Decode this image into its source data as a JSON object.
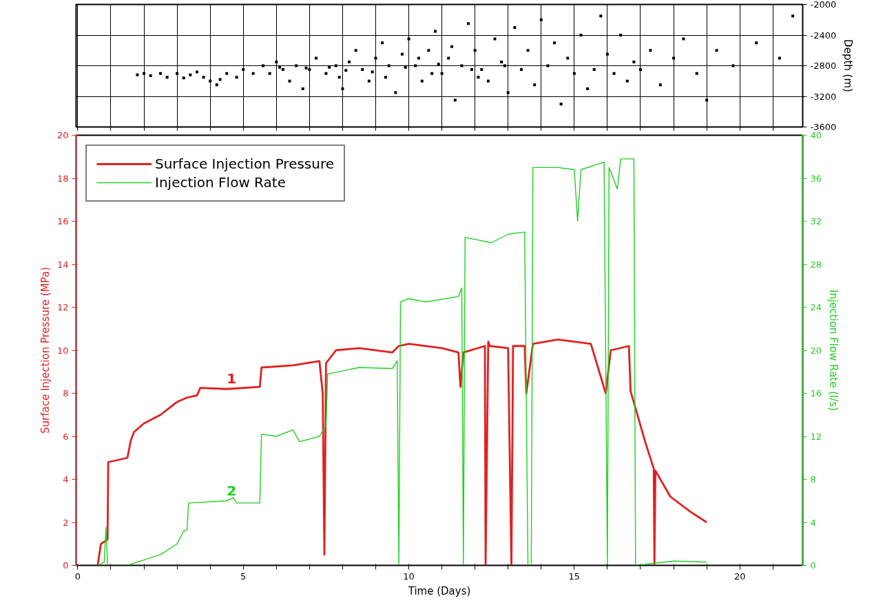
{
  "chart_data": [
    {
      "type": "scatter",
      "color": "#000000",
      "marker": "square",
      "grid": true,
      "tick_labels": "y",
      "ylabel": "Depth (m)",
      "xlim": [
        -0.05,
        21.9
      ],
      "ylim": [
        -3600,
        -2000
      ],
      "yticks": [
        -2000,
        -2400,
        -2800,
        -3200,
        -3600
      ],
      "xticks": [
        {
          "value": 0,
          "label": null
        },
        {
          "value": 1,
          "label": null
        },
        {
          "value": 2,
          "label": null
        },
        {
          "value": 3,
          "label": null
        },
        {
          "value": 4,
          "label": null
        },
        {
          "value": 5,
          "label": null
        },
        {
          "value": 6,
          "label": null
        },
        {
          "value": 7,
          "label": null
        },
        {
          "value": 8,
          "label": null
        },
        {
          "value": 9,
          "label": null
        },
        {
          "value": 10,
          "label": null
        },
        {
          "value": 11,
          "label": null
        },
        {
          "value": 12,
          "label": null
        },
        {
          "value": 13,
          "label": null
        },
        {
          "value": 14,
          "label": null
        },
        {
          "value": 15,
          "label": null
        },
        {
          "value": 16,
          "label": null
        },
        {
          "value": 17,
          "label": null
        },
        {
          "value": 18,
          "label": null
        },
        {
          "value": 19,
          "label": null
        },
        {
          "value": 20,
          "label": null
        },
        {
          "value": 21,
          "label": null
        }
      ],
      "x": [
        1.8,
        2.0,
        2.2,
        2.5,
        2.7,
        3.0,
        3.2,
        3.4,
        3.6,
        3.8,
        4.0,
        4.2,
        4.3,
        4.5,
        4.8,
        5.0,
        5.3,
        5.6,
        5.8,
        6.0,
        6.2,
        6.4,
        6.6,
        6.8,
        7.0,
        7.2,
        7.5,
        7.8,
        8.0,
        8.2,
        8.4,
        8.6,
        8.8,
        9.0,
        9.2,
        9.4,
        9.6,
        9.8,
        10.0,
        10.2,
        10.4,
        10.6,
        10.8,
        11.0,
        11.2,
        11.4,
        11.6,
        11.8,
        12.0,
        12.2,
        12.4,
        12.6,
        12.8,
        13.0,
        13.2,
        13.4,
        13.6,
        13.8,
        14.0,
        14.2,
        14.4,
        14.6,
        14.8,
        15.0,
        15.2,
        15.4,
        15.6,
        15.8,
        16.0,
        16.2,
        16.4,
        16.6,
        16.8,
        17.0,
        17.3,
        17.6,
        18.0,
        18.3,
        18.7,
        19.0,
        19.3,
        19.8,
        20.5,
        21.2,
        21.6,
        6.1,
        6.9,
        8.1,
        8.9,
        9.9,
        10.9,
        11.9,
        12.9,
        9.3,
        10.3,
        10.7,
        11.3,
        12.1,
        7.6,
        7.9
      ],
      "values": [
        -2920,
        -2900,
        -2930,
        -2900,
        -2950,
        -2900,
        -2960,
        -2920,
        -2880,
        -2950,
        -3000,
        -3050,
        -2980,
        -2900,
        -2950,
        -2850,
        -2900,
        -2800,
        -2900,
        -2750,
        -2850,
        -3000,
        -2800,
        -3100,
        -2850,
        -2700,
        -2900,
        -2800,
        -3100,
        -2750,
        -2600,
        -2850,
        -3000,
        -2700,
        -2500,
        -2800,
        -3150,
        -2650,
        -2450,
        -2800,
        -3000,
        -2600,
        -2350,
        -2900,
        -2700,
        -3250,
        -2800,
        -2250,
        -2600,
        -2850,
        -3000,
        -2450,
        -2750,
        -3150,
        -2300,
        -2850,
        -2600,
        -3050,
        -2200,
        -2800,
        -2500,
        -3300,
        -2700,
        -2900,
        -2400,
        -3100,
        -2850,
        -2150,
        -2650,
        -2900,
        -2400,
        -3000,
        -2750,
        -2850,
        -2600,
        -3050,
        -2700,
        -2450,
        -2900,
        -3250,
        -2600,
        -2800,
        -2500,
        -2700,
        -2150,
        -2820,
        -2830,
        -2860,
        -2880,
        -2820,
        -2780,
        -2850,
        -2800,
        -2950,
        -2700,
        -2900,
        -2550,
        -2950,
        -2820,
        -2950
      ]
    },
    {
      "type": "line",
      "grid": false,
      "legend": "top left",
      "line_style": "solid",
      "xlabel": "Time (Days)",
      "ylabel": "Surface Injection Pressure (MPa)",
      "y2label": "Injection Flow Rate (l/s)",
      "xlim": [
        -0.05,
        21.9
      ],
      "ylim": [
        0,
        20
      ],
      "y2lim": [
        0,
        40
      ],
      "xticks": [
        0,
        {
          "value": 1,
          "label": null
        },
        {
          "value": 2,
          "label": null
        },
        {
          "value": 3,
          "label": null
        },
        {
          "value": 4,
          "label": null
        },
        5,
        {
          "value": 6,
          "label": null
        },
        {
          "value": 7,
          "label": null
        },
        {
          "value": 8,
          "label": null
        },
        {
          "value": 9,
          "label": null
        },
        10,
        {
          "value": 11,
          "label": null
        },
        {
          "value": 12,
          "label": null
        },
        {
          "value": 13,
          "label": null
        },
        {
          "value": 14,
          "label": null
        },
        15,
        {
          "value": 16,
          "label": null
        },
        {
          "value": 17,
          "label": null
        },
        {
          "value": 18,
          "label": null
        },
        {
          "value": 19,
          "label": null
        },
        20,
        {
          "value": 21,
          "label": null
        }
      ],
      "yticks": [
        0,
        2,
        4,
        6,
        8,
        10,
        12,
        14,
        16,
        18,
        20
      ],
      "y2ticks": [
        0,
        4,
        8,
        12,
        16,
        20,
        24,
        28,
        32,
        36,
        40
      ],
      "annotations": [
        "1",
        "2"
      ],
      "series": [
        {
          "name": "Surface Injection Pressure",
          "color": "#e02020",
          "x": [
            0.6,
            0.7,
            0.9,
            0.92,
            1.5,
            1.6,
            1.7,
            2.0,
            2.5,
            3.0,
            3.3,
            3.6,
            3.7,
            4.5,
            5.5,
            5.55,
            6.5,
            7.3,
            7.4,
            7.45,
            7.5,
            7.8,
            8.5,
            9.5,
            9.7,
            10.0,
            11.0,
            11.5,
            11.56,
            11.65,
            12.3,
            12.32,
            12.4,
            12.45,
            13.0,
            13.1,
            13.15,
            13.5,
            13.55,
            13.75,
            14.5,
            15.5,
            15.95,
            16.1,
            16.65,
            16.7,
            17.15,
            17.4,
            17.42,
            17.45,
            17.9,
            18.5,
            19.0
          ],
          "values": [
            0,
            1.0,
            1.2,
            4.8,
            5.0,
            5.8,
            6.2,
            6.6,
            7.0,
            7.6,
            7.8,
            7.9,
            8.25,
            8.2,
            8.3,
            9.2,
            9.3,
            9.5,
            8.0,
            0.5,
            9.4,
            10.0,
            10.1,
            9.9,
            10.2,
            10.3,
            10.1,
            9.9,
            8.3,
            9.9,
            10.2,
            0,
            10.4,
            10.2,
            10.1,
            0,
            10.2,
            10.2,
            8.0,
            10.3,
            10.5,
            10.3,
            8.0,
            10.0,
            10.2,
            8.1,
            5.7,
            4.5,
            0,
            4.4,
            3.2,
            2.5,
            2.0
          ]
        },
        {
          "name": "Injection Flow Rate",
          "color": "#20d020",
          "axis": "y2",
          "x": [
            0.6,
            0.8,
            0.85,
            0.9,
            1.5,
            2.0,
            2.5,
            3.0,
            3.2,
            3.3,
            3.35,
            4.5,
            4.7,
            4.8,
            5.5,
            5.55,
            6.0,
            6.5,
            6.7,
            7.3,
            7.5,
            7.55,
            8.5,
            9.5,
            9.65,
            9.7,
            9.75,
            10.0,
            10.5,
            11.5,
            11.6,
            11.65,
            11.7,
            12.5,
            13.0,
            13.5,
            13.6,
            13.7,
            13.75,
            14.5,
            15.0,
            15.1,
            15.2,
            15.9,
            16.0,
            16.05,
            16.3,
            16.4,
            16.8,
            16.85,
            18.0,
            19.0
          ],
          "values": [
            0,
            0.3,
            3.5,
            0,
            0,
            0.5,
            1.0,
            2.0,
            3.2,
            3.3,
            5.8,
            6.0,
            6.3,
            5.8,
            5.8,
            12.2,
            12.0,
            12.6,
            11.5,
            12.0,
            13.0,
            17.8,
            18.4,
            18.3,
            19.0,
            0,
            24.5,
            24.8,
            24.5,
            25.0,
            25.8,
            0,
            30.5,
            30.0,
            30.8,
            31.0,
            0,
            0,
            37.0,
            37.0,
            36.8,
            32.0,
            36.8,
            37.5,
            0,
            37.0,
            35.0,
            37.8,
            37.8,
            0,
            0.4,
            0.3
          ]
        }
      ]
    }
  ]
}
